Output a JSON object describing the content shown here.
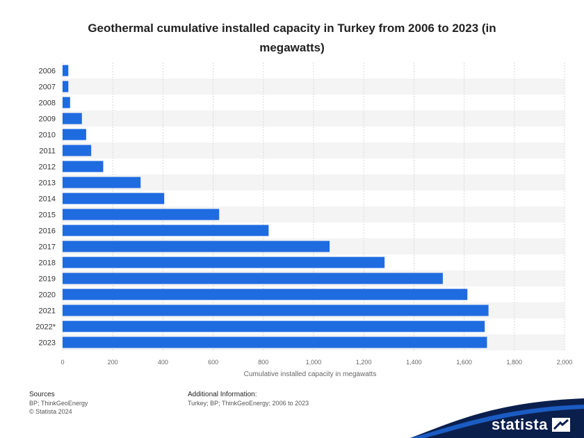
{
  "chart_data": {
    "type": "bar",
    "orientation": "horizontal",
    "title": "Geothermal cumulative installed capacity in Turkey from 2006 to 2023 (in megawatts)",
    "xlabel": "Cumulative installed capacity in megawatts",
    "ylabel": "",
    "xlim": [
      0,
      2000
    ],
    "x_ticks": [
      0,
      200,
      400,
      600,
      800,
      1000,
      1200,
      1400,
      1600,
      1800,
      2000
    ],
    "x_tick_labels": [
      "0",
      "200",
      "400",
      "600",
      "800",
      "1,000",
      "1,200",
      "1,400",
      "1,600",
      "1,800",
      "2,000"
    ],
    "categories": [
      "2006",
      "2007",
      "2008",
      "2009",
      "2010",
      "2011",
      "2012",
      "2013",
      "2014",
      "2015",
      "2016",
      "2017",
      "2018",
      "2019",
      "2020",
      "2021",
      "2022*",
      "2023"
    ],
    "values": [
      23,
      23,
      30,
      77,
      94,
      114,
      162,
      311,
      405,
      624,
      821,
      1064,
      1283,
      1515,
      1613,
      1697,
      1682,
      1691
    ],
    "grid": true,
    "bar_color": "#1f6be0"
  },
  "footer": {
    "sources_heading": "Sources",
    "sources_lines": [
      "BP; ThinkGeoEnergy",
      "© Statista 2024"
    ],
    "additional_heading": "Additional Information:",
    "additional_line": "Turkey; BP; ThinkGeoEnergy; 2006 to 2023"
  },
  "brand": {
    "name": "statista"
  }
}
